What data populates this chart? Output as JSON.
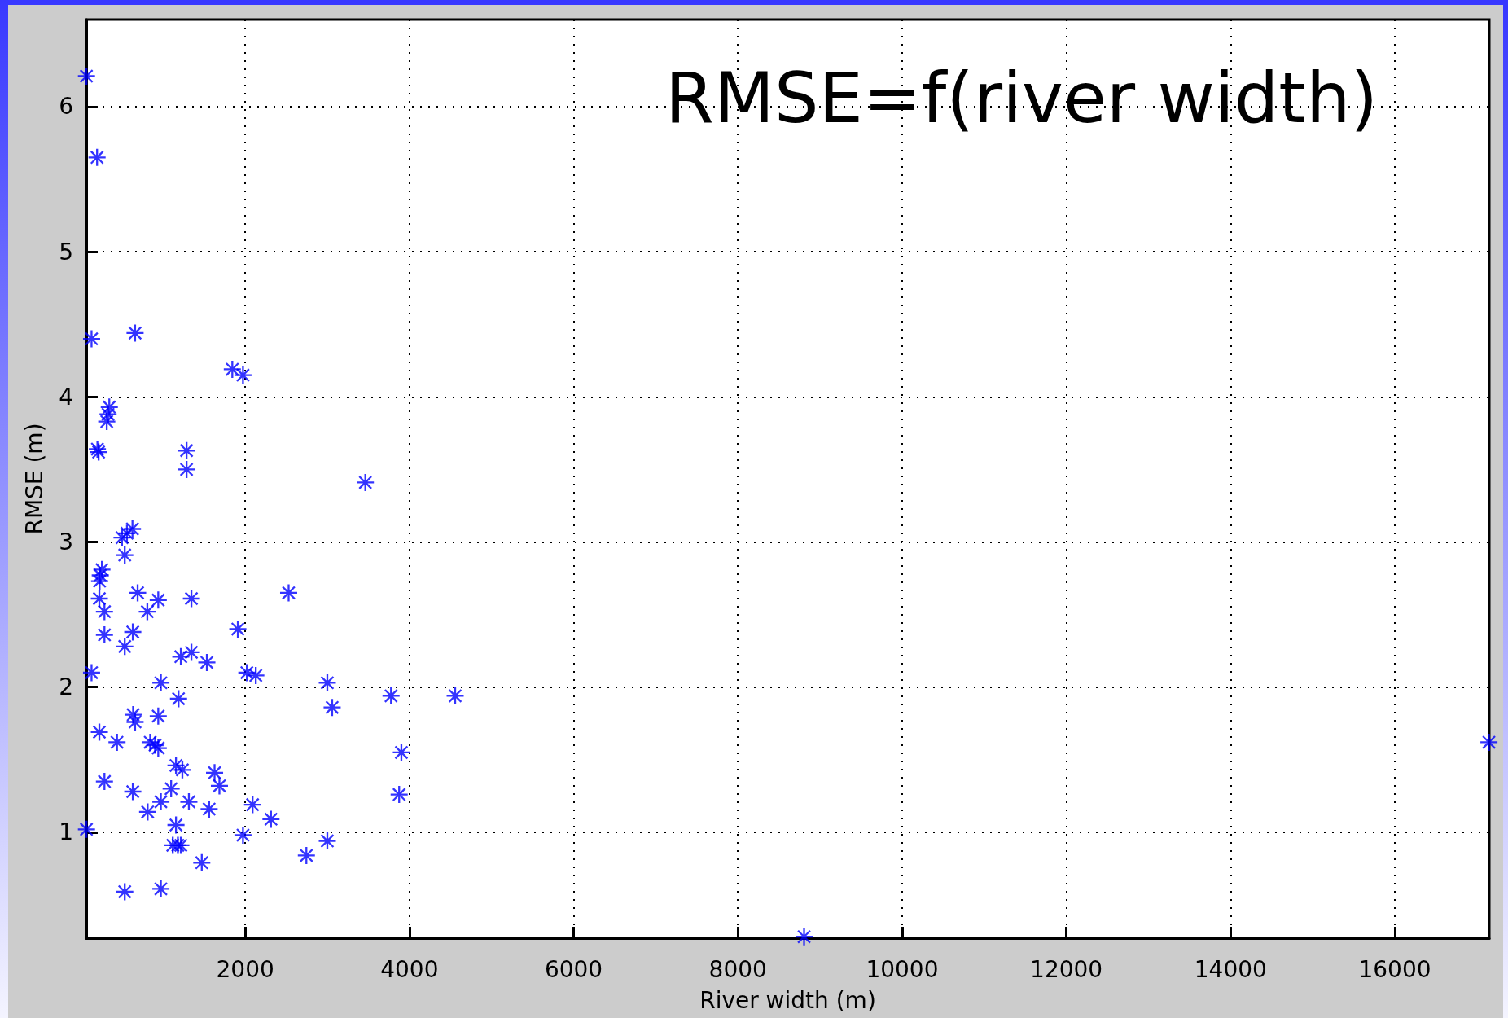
{
  "chart_data": {
    "type": "scatter",
    "title": "RMSE=f(river width)",
    "xlabel": "River width (m)",
    "ylabel": "RMSE (m)",
    "x": [
      67,
      196,
      129,
      659,
      1843,
      1973,
      345,
      330,
      314,
      200,
      215,
      1286,
      1286,
      3463,
      627,
      500,
      560,
      533,
      255,
      235,
      227,
      690,
      224,
      941,
      1345,
      286,
      808,
      2529,
      1910,
      286,
      631,
      533,
      1216,
      1345,
      1533,
      129,
      2020,
      2129,
      973,
      3000,
      1188,
      3776,
      4557,
      3059,
      635,
      659,
      941,
      224,
      439,
      843,
      902,
      941,
      3902,
      1157,
      1235,
      1627,
      286,
      1686,
      1098,
      631,
      3875,
      973,
      1314,
      2090,
      1561,
      812,
      2314,
      1157,
      67,
      1973,
      3000,
      1118,
      1180,
      1216,
      2745,
      1471,
      533,
      973,
      8806,
      17146
    ],
    "values": [
      6.21,
      5.65,
      4.4,
      4.44,
      4.19,
      4.15,
      3.93,
      3.88,
      3.83,
      3.64,
      3.62,
      3.63,
      3.5,
      3.41,
      3.09,
      3.03,
      3.06,
      2.91,
      2.81,
      2.77,
      2.73,
      2.65,
      2.61,
      2.6,
      2.61,
      2.52,
      2.52,
      2.65,
      2.4,
      2.36,
      2.38,
      2.28,
      2.21,
      2.24,
      2.17,
      2.1,
      2.1,
      2.08,
      2.03,
      2.03,
      1.92,
      1.94,
      1.94,
      1.86,
      1.81,
      1.76,
      1.8,
      1.69,
      1.62,
      1.62,
      1.6,
      1.58,
      1.55,
      1.46,
      1.43,
      1.41,
      1.35,
      1.32,
      1.3,
      1.28,
      1.26,
      1.21,
      1.21,
      1.19,
      1.16,
      1.14,
      1.09,
      1.05,
      1.02,
      0.98,
      0.94,
      0.91,
      0.91,
      0.91,
      0.84,
      0.79,
      0.59,
      0.61,
      0.28,
      1.62
    ],
    "color": "#0000ff",
    "marker": "star",
    "xlim": [
      65,
      17150
    ],
    "ylim": [
      0.27,
      6.6
    ],
    "xticks": [
      2000,
      4000,
      6000,
      8000,
      10000,
      12000,
      14000,
      16000
    ],
    "yticks": [
      1,
      2,
      3,
      4,
      5,
      6
    ],
    "grid": true
  }
}
